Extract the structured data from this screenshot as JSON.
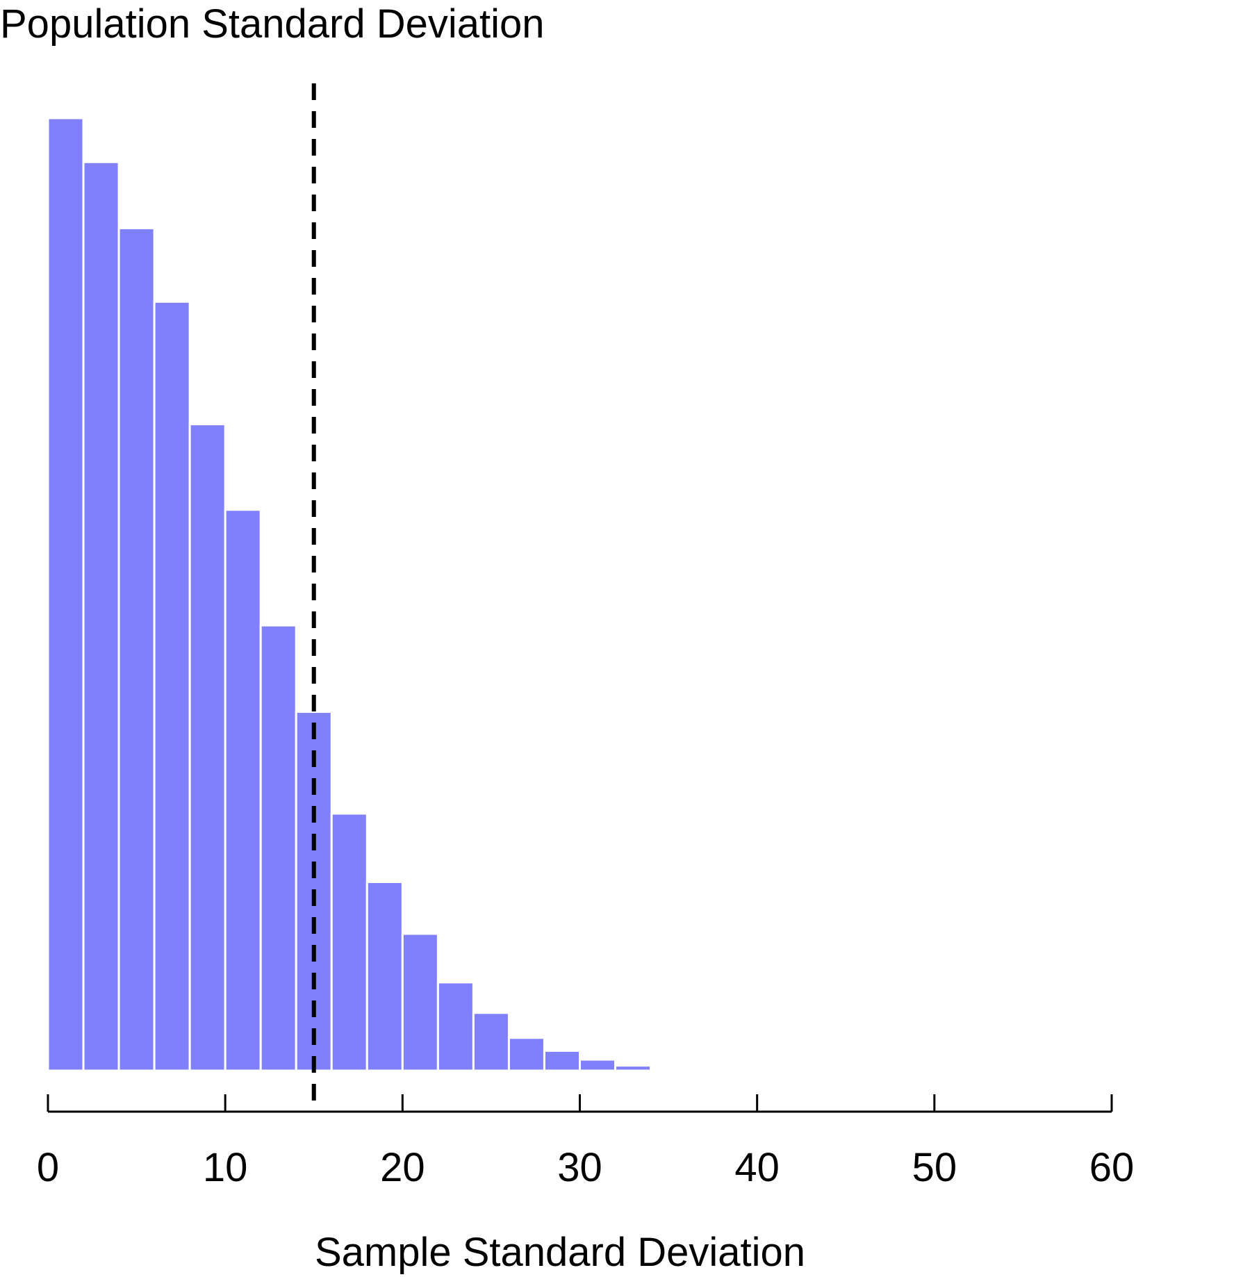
{
  "chart_data": {
    "type": "bar",
    "title": "",
    "annotation": "Population Standard Deviation",
    "xlabel": "Sample Standard Deviation",
    "ylabel": "",
    "xlim": [
      0,
      60
    ],
    "x_ticks": [
      "0",
      "10",
      "20",
      "30",
      "40",
      "50",
      "60"
    ],
    "bin_width": 2,
    "bins": [
      {
        "x0": 0,
        "x1": 2,
        "value": 2060
      },
      {
        "x0": 2,
        "x1": 4,
        "value": 1965
      },
      {
        "x0": 4,
        "x1": 6,
        "value": 1822
      },
      {
        "x0": 6,
        "x1": 8,
        "value": 1663
      },
      {
        "x0": 8,
        "x1": 10,
        "value": 1398
      },
      {
        "x0": 10,
        "x1": 12,
        "value": 1213
      },
      {
        "x0": 12,
        "x1": 14,
        "value": 963
      },
      {
        "x0": 14,
        "x1": 16,
        "value": 776
      },
      {
        "x0": 16,
        "x1": 18,
        "value": 556
      },
      {
        "x0": 18,
        "x1": 20,
        "value": 408
      },
      {
        "x0": 20,
        "x1": 22,
        "value": 296
      },
      {
        "x0": 22,
        "x1": 24,
        "value": 191
      },
      {
        "x0": 24,
        "x1": 26,
        "value": 125
      },
      {
        "x0": 26,
        "x1": 28,
        "value": 71
      },
      {
        "x0": 28,
        "x1": 30,
        "value": 43
      },
      {
        "x0": 30,
        "x1": 32,
        "value": 24
      },
      {
        "x0": 32,
        "x1": 34,
        "value": 11
      },
      {
        "x0": 34,
        "x1": 36,
        "value": 2
      }
    ],
    "y_max": 2060,
    "reference_line": {
      "x": 15,
      "style": "dashed"
    },
    "colors": {
      "bar_fill": "#8080FC",
      "bar_stroke": "#FFFFFF",
      "axis": "#000000",
      "reference_line": "#000000"
    },
    "grid": false,
    "legend": "none"
  }
}
